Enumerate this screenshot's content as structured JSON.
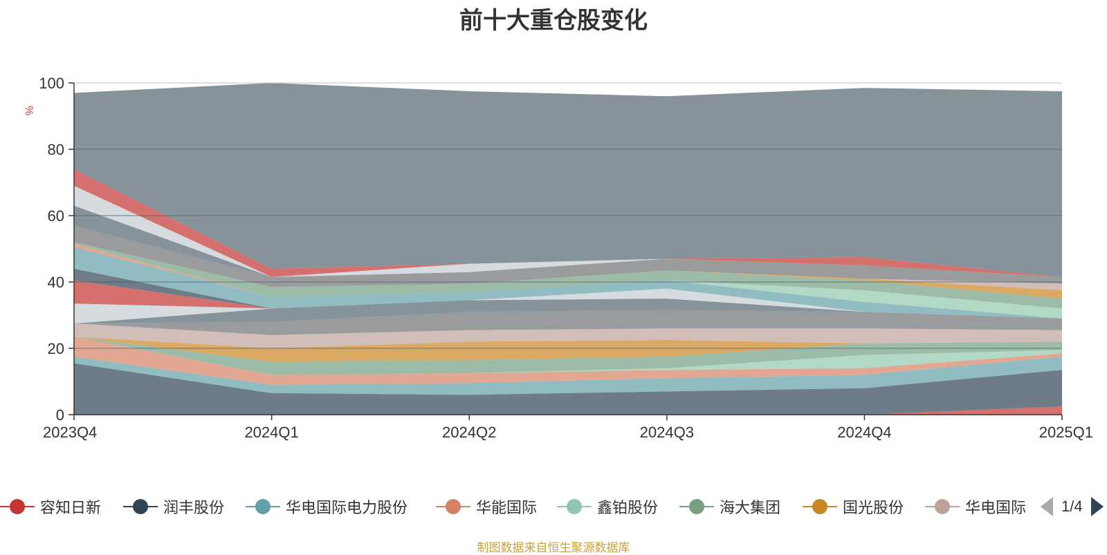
{
  "chart_data": {
    "type": "area",
    "stacked": true,
    "title": "前十大重仓股变化",
    "ylabel": "%",
    "ylim": [
      0,
      100
    ],
    "yticks": [
      "0",
      "20",
      "40",
      "60",
      "80",
      "100"
    ],
    "categories": [
      "2023Q4",
      "2024Q1",
      "2024Q2",
      "2024Q3",
      "2024Q4",
      "2025Q1"
    ],
    "grid": true,
    "legend_position": "bottom",
    "series": [
      {
        "name": "容知日新",
        "color": "#c23531",
        "values": [
          0,
          0,
          0,
          0,
          0,
          2.5
        ]
      },
      {
        "name": "润丰股份",
        "color": "#2f4554",
        "values": [
          15.5,
          6.5,
          6,
          7,
          8,
          11
        ]
      },
      {
        "name": "华电国际电力股份",
        "color": "#61a0a8",
        "values": [
          2,
          2.5,
          3.5,
          4,
          4,
          4
        ]
      },
      {
        "name": "华能国际",
        "color": "#d48265",
        "values": [
          6,
          3,
          3,
          2.5,
          2,
          1
        ]
      },
      {
        "name": "鑫铂股份",
        "color": "#91c7ae",
        "values": [
          0,
          0,
          0,
          0.5,
          4,
          1
        ]
      },
      {
        "name": "海大集团",
        "color": "#749f83",
        "values": [
          0,
          4,
          4,
          3.5,
          3.5,
          2.5
        ]
      },
      {
        "name": "国光股份",
        "color": "#ca8622",
        "values": [
          0,
          4,
          5.5,
          5,
          0,
          0
        ]
      },
      {
        "name": "华电国际",
        "color": "#bda29a",
        "values": [
          4,
          4,
          3.5,
          3.5,
          4.5,
          3.5
        ]
      },
      {
        "name": "",
        "color": "#6e7074",
        "values": [
          0,
          4,
          5.5,
          5.5,
          5,
          3.5
        ]
      },
      {
        "name": "",
        "color": "#546570",
        "values": [
          0,
          4,
          3.5,
          3.5,
          0,
          0
        ]
      },
      {
        "name": "",
        "color": "#c4ccd3",
        "values": [
          6,
          0,
          0,
          3,
          0,
          0
        ]
      },
      {
        "name": "",
        "color": "#c23531",
        "values": [
          7,
          0,
          0,
          0,
          0,
          0
        ]
      },
      {
        "name": "",
        "color": "#2f4554",
        "values": [
          3.5,
          0,
          0,
          0,
          0,
          0
        ]
      },
      {
        "name": "",
        "color": "#61a0a8",
        "values": [
          6.5,
          3.5,
          2.5,
          2.5,
          3,
          0
        ]
      },
      {
        "name": "",
        "color": "#d48265",
        "values": [
          1,
          0,
          0,
          0,
          0,
          0
        ]
      },
      {
        "name": "",
        "color": "#91c7ae",
        "values": [
          0,
          0,
          0,
          0,
          3.5,
          3
        ]
      },
      {
        "name": "",
        "color": "#749f83",
        "values": [
          0.5,
          3,
          2.5,
          3,
          3,
          3
        ]
      },
      {
        "name": "",
        "color": "#ca8622",
        "values": [
          0,
          0,
          0,
          0,
          0.5,
          2.5
        ]
      },
      {
        "name": "",
        "color": "#bda29a",
        "values": [
          0,
          0,
          0,
          0,
          0,
          2
        ]
      },
      {
        "name": "",
        "color": "#6e7074",
        "values": [
          5,
          3,
          3.5,
          3.5,
          4,
          2
        ]
      },
      {
        "name": "",
        "color": "#546570",
        "values": [
          6,
          0,
          0,
          0,
          0,
          0
        ]
      },
      {
        "name": "",
        "color": "#c4ccd3",
        "values": [
          6,
          0,
          2.5,
          0,
          0,
          0
        ]
      },
      {
        "name": "",
        "color": "#c23531",
        "values": [
          5,
          2.5,
          0,
          0,
          2.5,
          0
        ]
      },
      {
        "name": "",
        "color": "#2f4554",
        "values": [
          0,
          0,
          0,
          0,
          0,
          0
        ]
      },
      {
        "name": "",
        "color": "#546570",
        "values": [
          23,
          56,
          52,
          49,
          51,
          56
        ]
      }
    ]
  },
  "legend": {
    "visible_items": [
      {
        "name": "容知日新",
        "color": "#c23531"
      },
      {
        "name": "润丰股份",
        "color": "#2f4554"
      },
      {
        "name": "华电国际电力股份",
        "color": "#61a0a8"
      },
      {
        "name": "华能国际",
        "color": "#d48265"
      },
      {
        "name": "鑫铂股份",
        "color": "#91c7ae"
      },
      {
        "name": "海大集团",
        "color": "#749f83"
      },
      {
        "name": "国光股份",
        "color": "#ca8622"
      },
      {
        "name": "华电国际",
        "color": "#bda29a"
      }
    ],
    "page_indicator": "1/4"
  },
  "source_text": "制图数据来自恒生聚源数据库"
}
